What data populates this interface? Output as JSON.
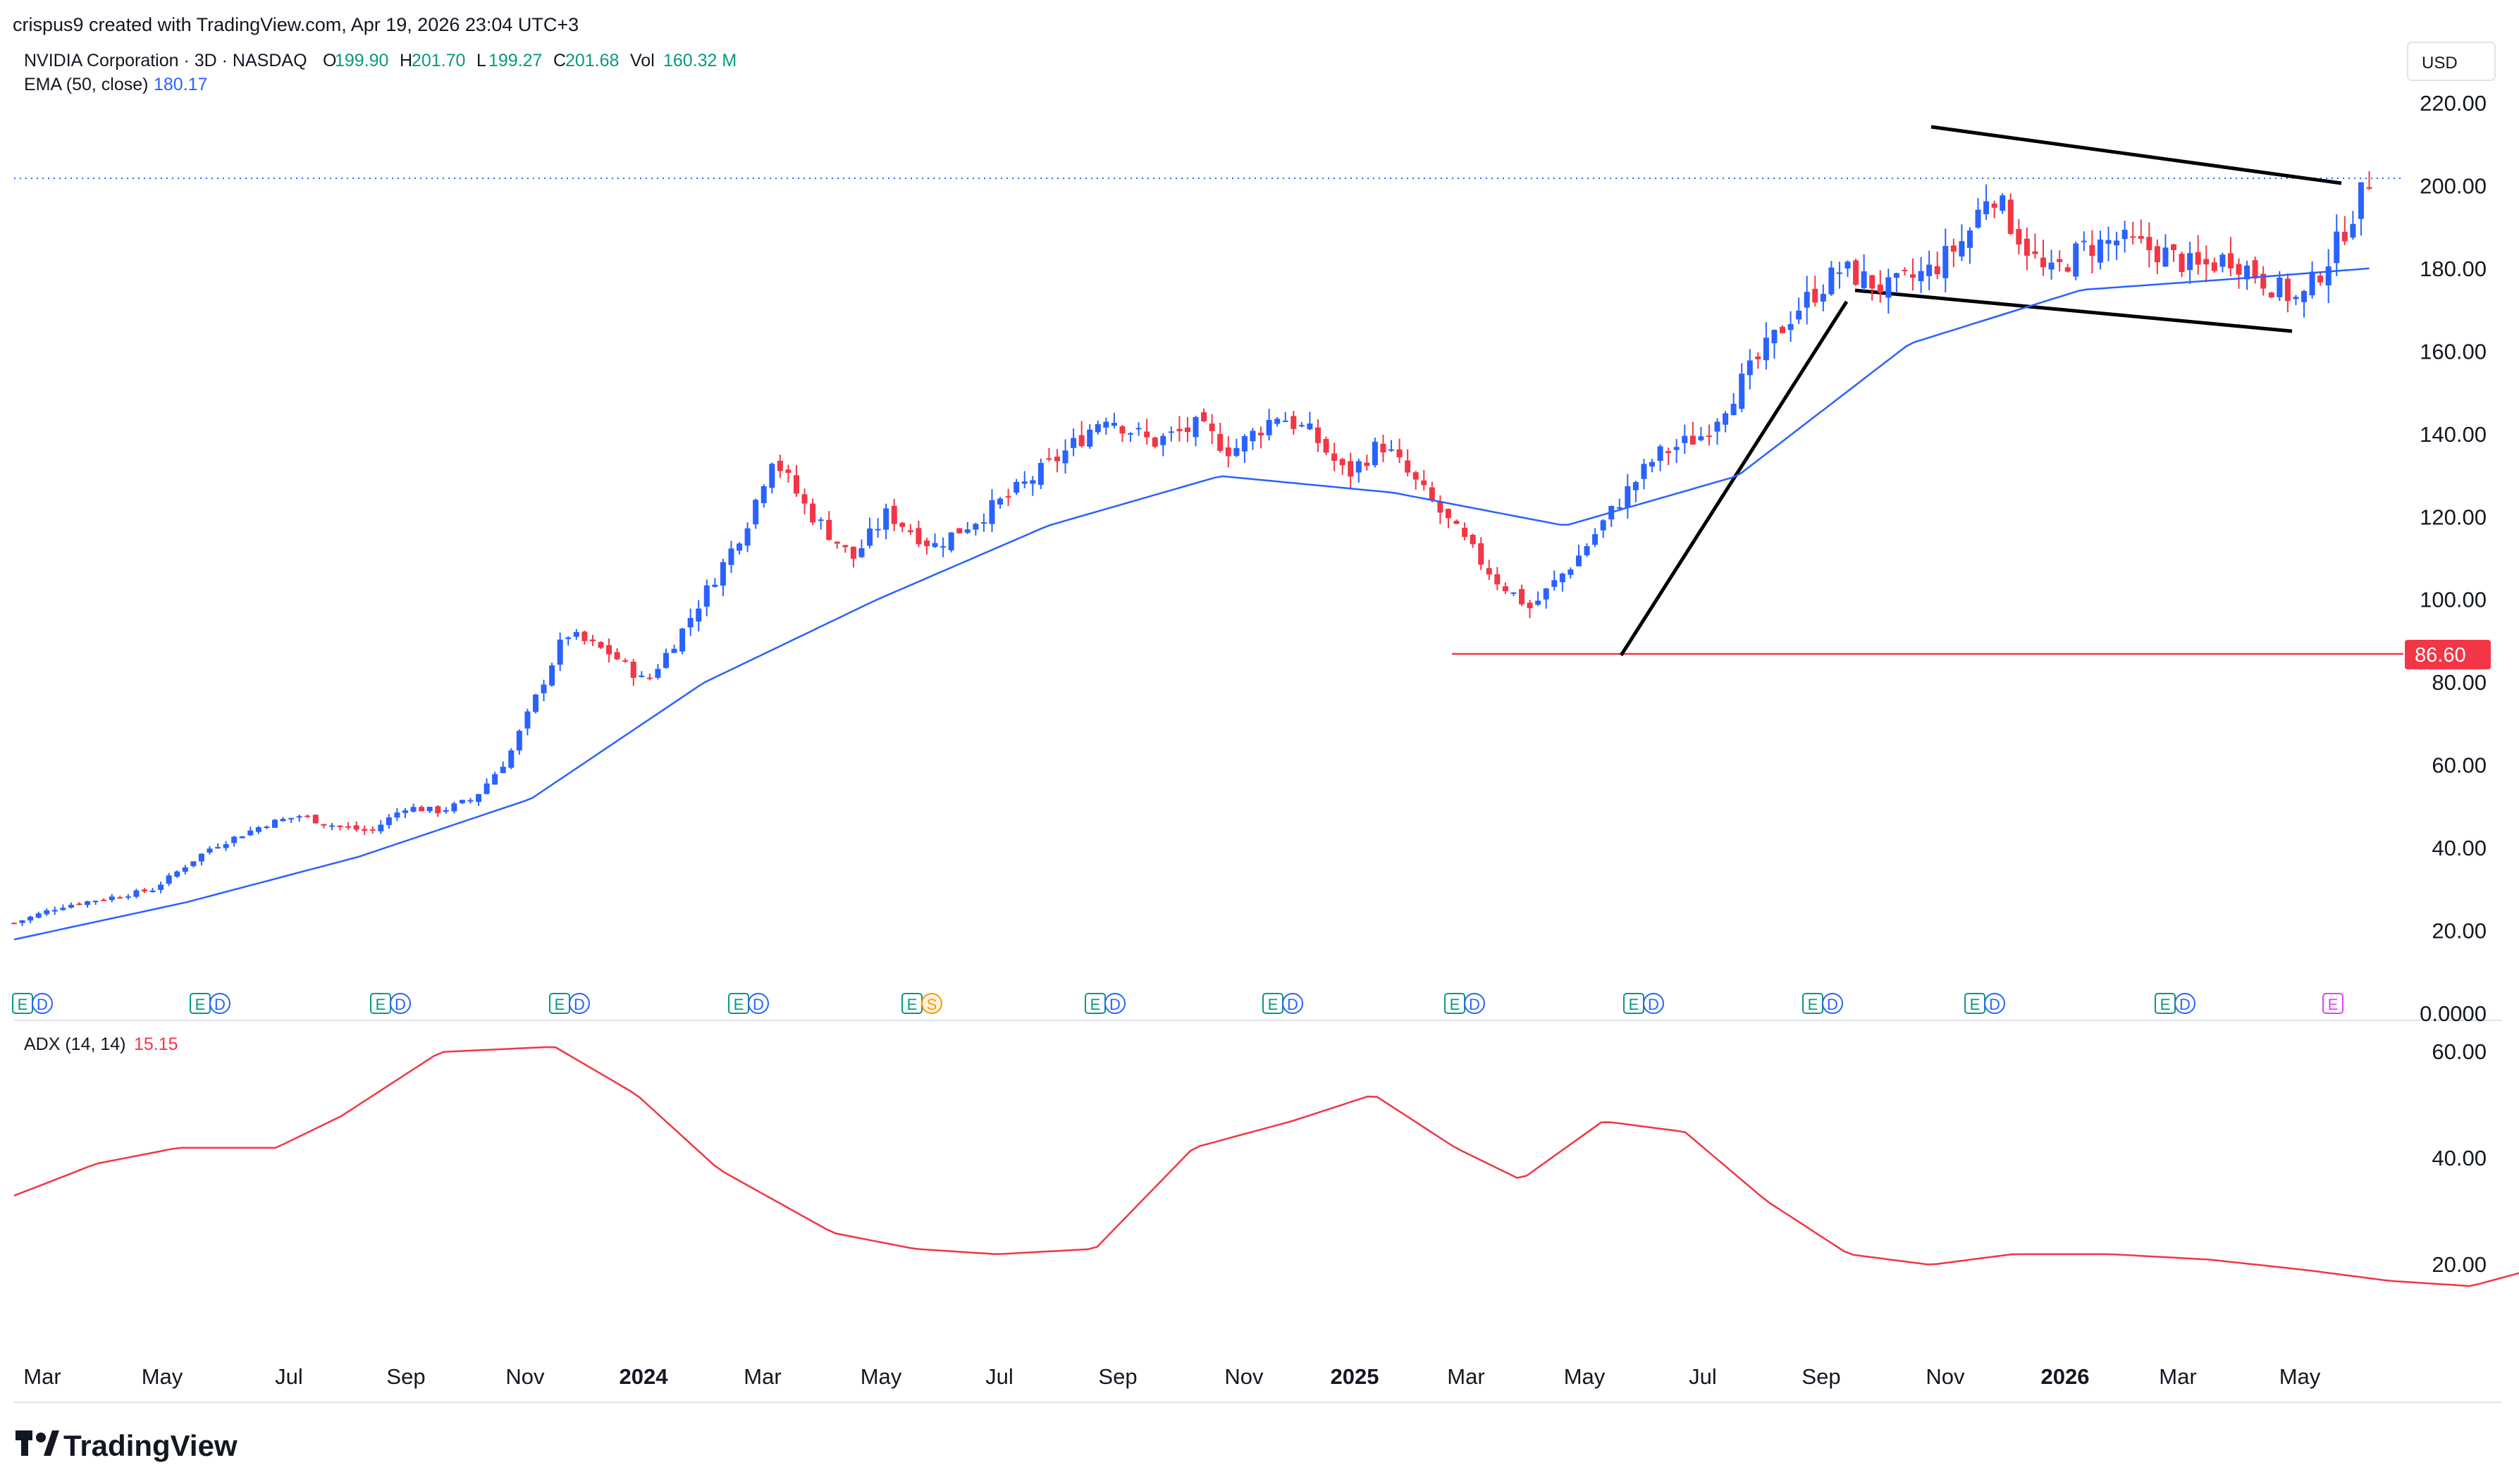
{
  "header": {
    "attribution": "crispus9 created with TradingView.com, Apr 19, 2026 23:04 UTC+3",
    "symbol_title": "NVIDIA Corporation · 3D · NASDAQ",
    "ohlc": [
      {
        "label": "O",
        "value": "199.90"
      },
      {
        "label": "H",
        "value": "201.70"
      },
      {
        "label": "L",
        "value": "199.27"
      },
      {
        "label": "C",
        "value": "201.68"
      },
      {
        "label": "Vol",
        "value": "160.32 M"
      }
    ],
    "ema_label": "EMA (50, close)",
    "ema_value": "180.17",
    "currency": "USD"
  },
  "indicator": {
    "label": "ADX (14, 14)",
    "value": "15.15"
  },
  "footer": {
    "brand": "TradingView"
  },
  "colors": {
    "up": "#2962ff",
    "down": "#f23645",
    "ema": "#2962ff",
    "adx": "#f23645",
    "support": "#f23645",
    "accent_text": "#089981"
  },
  "chart_data": [
    {
      "type": "candlestick",
      "title": "NVIDIA Corporation · 3D · NASDAQ",
      "x_tick_labels": [
        "Mar",
        "May",
        "Jul",
        "Sep",
        "Nov",
        "2024",
        "Mar",
        "May",
        "Jul",
        "Sep",
        "Nov",
        "2025",
        "Mar",
        "May",
        "Jul",
        "Sep",
        "Nov",
        "2026",
        "Mar",
        "May"
      ],
      "y_tick_labels": [
        "220.00",
        "200.00",
        "180.00",
        "160.00",
        "140.00",
        "120.00",
        "100.00",
        "80.00",
        "60.00",
        "40.00",
        "20.00",
        "0.0000"
      ],
      "ylim": [
        0,
        220
      ],
      "grid": false,
      "price_series_path": [
        [
          0,
          22
        ],
        [
          0.04,
          26
        ],
        [
          0.08,
          28
        ],
        [
          0.12,
          30
        ],
        [
          0.17,
          40
        ],
        [
          0.22,
          46
        ],
        [
          0.25,
          48
        ],
        [
          0.27,
          46
        ],
        [
          0.31,
          44
        ],
        [
          0.34,
          50
        ],
        [
          0.37,
          49
        ],
        [
          0.4,
          52
        ],
        [
          0.43,
          62
        ],
        [
          0.46,
          80
        ],
        [
          0.48,
          92
        ],
        [
          0.52,
          87
        ],
        [
          0.55,
          80
        ],
        [
          0.58,
          92
        ],
        [
          0.62,
          110
        ],
        [
          0.64,
          120
        ],
        [
          0.66,
          135
        ],
        [
          0.69,
          122
        ],
        [
          0.73,
          110
        ],
        [
          0.76,
          121
        ],
        [
          0.8,
          113
        ],
        [
          0.84,
          120
        ],
        [
          0.88,
          128
        ],
        [
          0.92,
          137
        ],
        [
          0.95,
          145
        ],
        [
          0.99,
          138
        ],
        [
          1.03,
          142
        ],
        [
          1.06,
          136
        ],
        [
          1.1,
          145
        ],
        [
          1.13,
          140
        ],
        [
          1.16,
          130
        ],
        [
          1.19,
          138
        ],
        [
          1.23,
          125
        ],
        [
          1.26,
          115
        ],
        [
          1.29,
          105
        ],
        [
          1.32,
          98
        ],
        [
          1.36,
          110
        ],
        [
          1.4,
          125
        ],
        [
          1.43,
          135
        ],
        [
          1.47,
          140
        ],
        [
          1.51,
          155
        ],
        [
          1.55,
          170
        ],
        [
          1.59,
          180
        ],
        [
          1.63,
          175
        ],
        [
          1.67,
          180
        ],
        [
          1.7,
          188
        ],
        [
          1.72,
          200
        ],
        [
          1.74,
          190
        ],
        [
          1.77,
          178
        ],
        [
          1.8,
          185
        ],
        [
          1.83,
          187
        ],
        [
          1.87,
          184
        ],
        [
          1.9,
          180
        ],
        [
          1.93,
          183
        ],
        [
          1.96,
          177
        ],
        [
          1.99,
          172
        ],
        [
          2.02,
          185
        ],
        [
          2.05,
          201.68
        ]
      ],
      "series": [
        {
          "name": "EMA (50, close)",
          "last_value": 180.17,
          "path": [
            [
              0,
              18
            ],
            [
              0.15,
              27
            ],
            [
              0.3,
              38
            ],
            [
              0.45,
              52
            ],
            [
              0.6,
              80
            ],
            [
              0.75,
              100
            ],
            [
              0.9,
              118
            ],
            [
              1.05,
              130
            ],
            [
              1.2,
              126
            ],
            [
              1.35,
              118
            ],
            [
              1.5,
              130
            ],
            [
              1.65,
              162
            ],
            [
              1.8,
              175
            ],
            [
              1.95,
              178
            ],
            [
              2.05,
              180.17
            ]
          ]
        }
      ],
      "support_level": {
        "label": "86.60",
        "value": 86.6
      },
      "annotations": [
        "Wedge trendlines",
        "Impulse line"
      ],
      "earnings_markers": [
        "E",
        "D",
        "E",
        "D",
        "E",
        "D",
        "E",
        "D",
        "E",
        "D",
        "E",
        "S",
        "E",
        "D",
        "E",
        "D",
        "E",
        "D",
        "E",
        "D",
        "E",
        "D",
        "E",
        "D",
        "E",
        "D",
        "E",
        "D",
        "E"
      ]
    },
    {
      "type": "line",
      "title": "ADX (14, 14)",
      "y_tick_labels": [
        "60.00",
        "40.00",
        "20.00"
      ],
      "ylim": [
        5,
        65
      ],
      "series": [
        {
          "name": "ADX (14, 14)",
          "last_value": 15.15,
          "path": [
            [
              0,
              33
            ],
            [
              0.05,
              39
            ],
            [
              0.1,
              42
            ],
            [
              0.16,
              42
            ],
            [
              0.2,
              48
            ],
            [
              0.26,
              60
            ],
            [
              0.33,
              61
            ],
            [
              0.38,
              52
            ],
            [
              0.43,
              38
            ],
            [
              0.5,
              26
            ],
            [
              0.55,
              23
            ],
            [
              0.6,
              22
            ],
            [
              0.66,
              23
            ],
            [
              0.72,
              42
            ],
            [
              0.78,
              47
            ],
            [
              0.83,
              52
            ],
            [
              0.88,
              42
            ],
            [
              0.92,
              36
            ],
            [
              0.97,
              47
            ],
            [
              1.02,
              45
            ],
            [
              1.07,
              32
            ],
            [
              1.12,
              22
            ],
            [
              1.17,
              20
            ],
            [
              1.22,
              22
            ],
            [
              1.28,
              22
            ],
            [
              1.34,
              21
            ],
            [
              1.4,
              19
            ],
            [
              1.45,
              17
            ],
            [
              1.5,
              16
            ],
            [
              1.56,
              21
            ],
            [
              1.62,
              18
            ],
            [
              1.68,
              18
            ],
            [
              1.74,
              29
            ],
            [
              1.79,
              36
            ],
            [
              1.84,
              28
            ],
            [
              1.9,
              25
            ],
            [
              1.95,
              22
            ],
            [
              2.0,
              19
            ],
            [
              2.05,
              16
            ],
            [
              2.1,
              14
            ],
            [
              2.15,
              11
            ],
            [
              2.2,
              12
            ],
            [
              2.25,
              17
            ],
            [
              2.28,
              15.15
            ]
          ]
        }
      ]
    }
  ]
}
